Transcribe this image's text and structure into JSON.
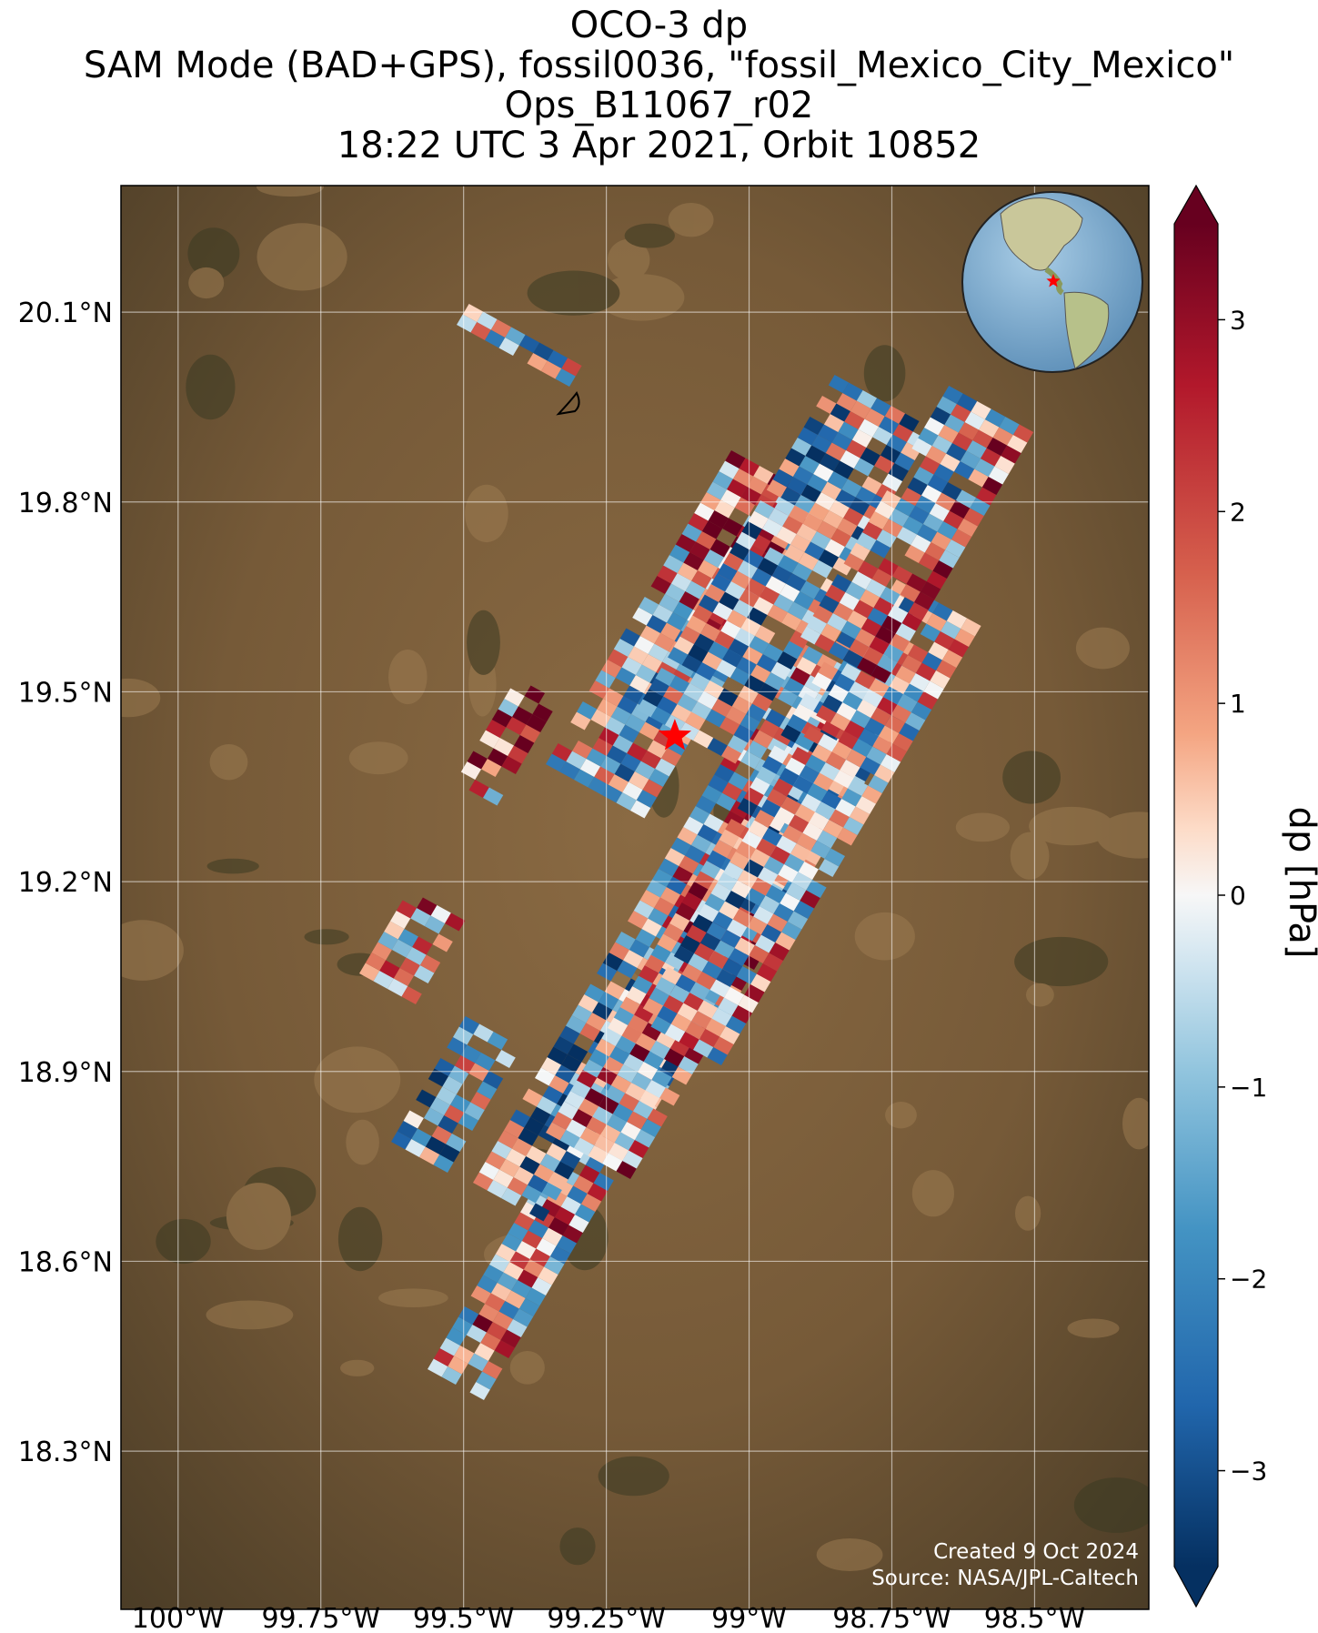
{
  "title": {
    "line1": "OCO-3 dp",
    "line2": "SAM Mode (BAD+GPS), fossil0036, \"fossil_Mexico_City_Mexico\"",
    "line3": "Ops_B11067_r02",
    "line4": "18:22 UTC 3 Apr 2021, Orbit 10852"
  },
  "map": {
    "lon_range": [
      -100.1,
      -98.3
    ],
    "lat_range": [
      18.05,
      20.3
    ],
    "x_ticks": [
      "100°W",
      "99.75°W",
      "99.5°W",
      "99.25°W",
      "99°W",
      "98.75°W",
      "98.5°W"
    ],
    "x_tick_values": [
      -100,
      -99.75,
      -99.5,
      -99.25,
      -99,
      -98.75,
      -98.5
    ],
    "y_ticks": [
      "20.1°N",
      "19.8°N",
      "19.5°N",
      "19.2°N",
      "18.9°N",
      "18.6°N",
      "18.3°N"
    ],
    "y_tick_values": [
      20.1,
      19.8,
      19.5,
      19.2,
      18.9,
      18.6,
      18.3
    ],
    "target": {
      "lon": -99.13,
      "lat": 19.43,
      "color": "#ff0000"
    },
    "grid": true,
    "inset": "globe-americas-with-target-star"
  },
  "colorbar": {
    "label": "dp [hPa]",
    "range": [
      -3.5,
      3.5
    ],
    "ticks": [
      "3",
      "2",
      "1",
      "0",
      "−1",
      "−2",
      "−3"
    ],
    "tick_values": [
      3,
      2,
      1,
      0,
      -1,
      -2,
      -3
    ],
    "colormap": "RdBu_r"
  },
  "footer": {
    "created": "Created 9 Oct 2024",
    "source": "Source: NASA/JPL-Caltech"
  }
}
